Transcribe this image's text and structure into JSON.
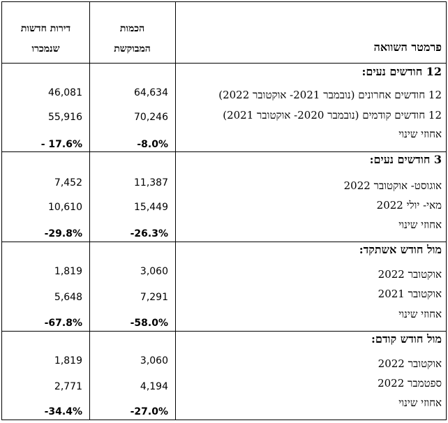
{
  "header": {
    "param": "פרמטר השוואה",
    "requested_line1": "הכמות",
    "requested_line2": "המבוקשת",
    "sold_line1": "דירות חדשות",
    "sold_line2": "שנמכרו"
  },
  "sections": [
    {
      "title": "12 חודשים נעים:",
      "rows": [
        {
          "label": "12 חודשים אחרונים (נובמבר 2021- אוקטובר 2022)",
          "requested": "64,634",
          "sold": "46,081"
        },
        {
          "label": "12 חודשים קודמים (נובמבר 2020- אוקטובר 2021)",
          "requested": "70,246",
          "sold": "55,916"
        },
        {
          "label": "אחוזי שינוי",
          "requested": "-8.0%",
          "sold": "- 17.6%"
        }
      ]
    },
    {
      "title": "3 חודשים נעים:",
      "rows": [
        {
          "label": "אוגוסט- אוקטובר 2022",
          "requested": "11,387",
          "sold": "7,452"
        },
        {
          "label": "מאי- יולי 2022",
          "requested": "15,449",
          "sold": "10,610"
        },
        {
          "label": "אחוזי שינוי",
          "requested": "-26.3%",
          "sold": "-29.8%"
        }
      ]
    },
    {
      "title": "מול חודש אשתקד:",
      "rows": [
        {
          "label": "אוקטובר 2022",
          "requested": "3,060",
          "sold": "1,819"
        },
        {
          "label": "אוקטובר 2021",
          "requested": "7,291",
          "sold": "5,648"
        },
        {
          "label": "אחוזי שינוי",
          "requested": "-58.0%",
          "sold": "-67.8%"
        }
      ]
    },
    {
      "title": "מול חודש קודם:",
      "rows": [
        {
          "label": "אוקטובר 2022",
          "requested": "3,060",
          "sold": "1,819"
        },
        {
          "label": "ספטמבר 2022",
          "requested": "4,194",
          "sold": "2,771"
        },
        {
          "label": "אחוזי שינוי",
          "requested": "-27.0%",
          "sold": "-34.4%"
        }
      ]
    }
  ]
}
